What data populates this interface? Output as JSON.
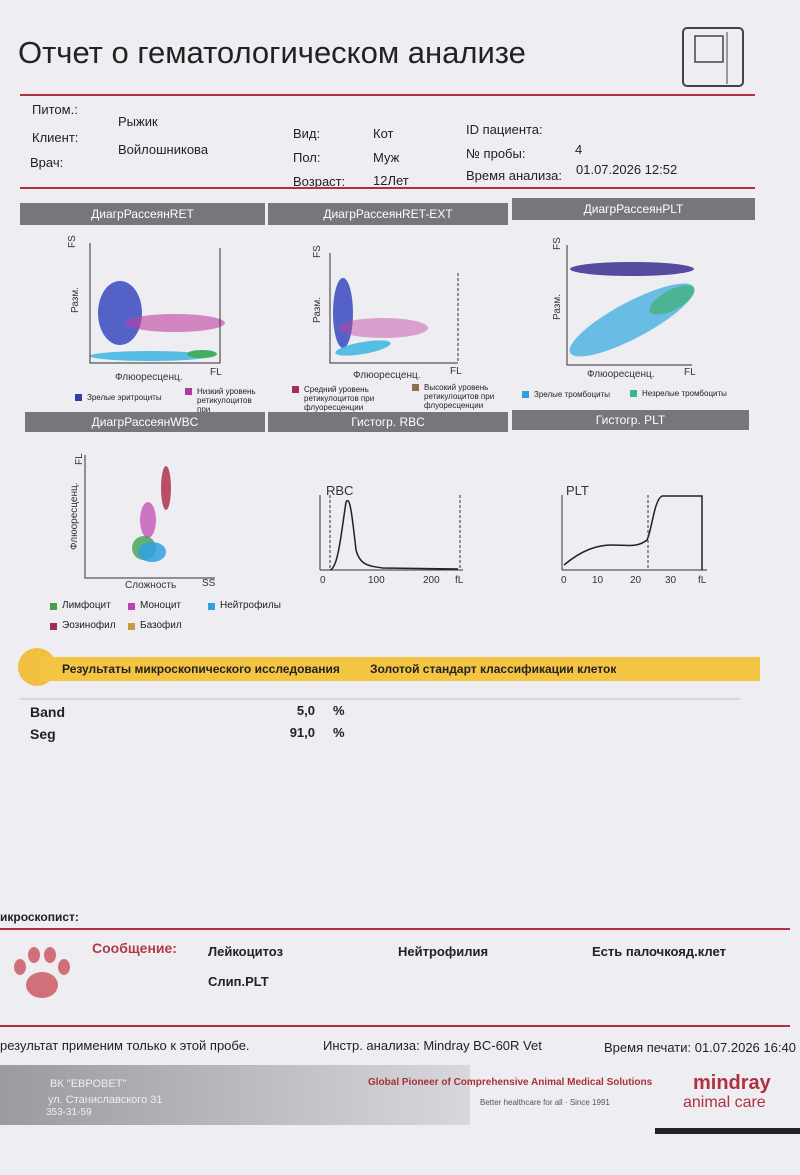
{
  "header": {
    "title": "Отчет о гематологическом анализе"
  },
  "patient": {
    "pet_label": "Питом.:",
    "pet": "Рыжик",
    "client_label": "Клиент:",
    "client": "Войлошникова",
    "doctor_label": "Врач:",
    "species_label": "Вид:",
    "species": "Кот",
    "sex_label": "Пол:",
    "sex": "Муж",
    "age_label": "Возраст:",
    "age": "12Лет",
    "id_label": "ID пациента:",
    "sample_label": "№ пробы:",
    "sample": "4",
    "time_label": "Время анализа:",
    "time": "01.07.2026 12:52"
  },
  "panels": {
    "ret": {
      "title": "ДиагрРассеянRET",
      "y_top": "FS",
      "y_label": "Разм.",
      "x_label": "Флюоресценц.",
      "x_end": "FL",
      "legend": [
        "Зрелые эритроциты",
        "Низкий уровень ретикулоцитов при флуоресценции"
      ]
    },
    "ret_ext": {
      "title": "ДиагрРассеянRET-EXT",
      "y_top": "FS",
      "y_label": "Разм.",
      "x_label": "Флюоресценц.",
      "x_end": "FL",
      "legend": [
        "Средний уровень ретикулоцитов при флуоресценции",
        "Высокий уровень ретикулоцитов при флуоресценции"
      ]
    },
    "plt": {
      "title": "ДиагрРассеянPLT",
      "y_top": "FS",
      "y_label": "Разм.",
      "x_label": "Флюоресценц.",
      "x_end": "FL",
      "legend": [
        "Зрелые тромбоциты",
        "Незрелые тромбоциты"
      ]
    },
    "wbc": {
      "title": "ДиагрРассеянWBC",
      "y_top": "FL",
      "y_label": "Флюоресценц.",
      "x_label": "Сложность",
      "x_end": "SS",
      "legend": [
        "Лимфоцит",
        "Моноцит",
        "Нейтрофилы",
        "Эозинофил",
        "Базофил"
      ]
    },
    "rbc_hist": {
      "title": "Гистогр. RBC",
      "label": "RBC",
      "ticks": [
        "0",
        "100",
        "200",
        "fL"
      ]
    },
    "plt_hist": {
      "title": "Гистогр. PLT",
      "label": "PLT",
      "ticks": [
        "0",
        "10",
        "20",
        "30",
        "fL"
      ]
    }
  },
  "microscopy": {
    "title": "Результаты микроскопического исследования",
    "subtitle": "Золотой стандарт классификации клеток",
    "rows": [
      [
        "Band",
        "5,0",
        "%"
      ],
      [
        "Seg",
        "91,0",
        "%"
      ]
    ],
    "microscopist": "икроскопист:"
  },
  "message": {
    "label": "Сообщение:",
    "items": [
      "Лейкоцитоз",
      "Нейтрофилия",
      "Есть палочкояд.клет",
      "Слип.PLT"
    ]
  },
  "footer": {
    "note": "результат применим только к этой пробе.",
    "instrument": "Инстр. анализа: Mindray BC-60R Vet",
    "print_time": "Время печати: 01.07.2026 16:40",
    "clinic": "ВК \"ЕВРОВЕТ\"",
    "address": "ул. Станиславского 31",
    "phone": "353-31-59",
    "slogan": "Global Pioneer of Comprehensive Animal Medical Solutions",
    "tagline": "Better healthcare for all · Since 1991",
    "brand": "mindray",
    "brand_sub": "animal care"
  }
}
